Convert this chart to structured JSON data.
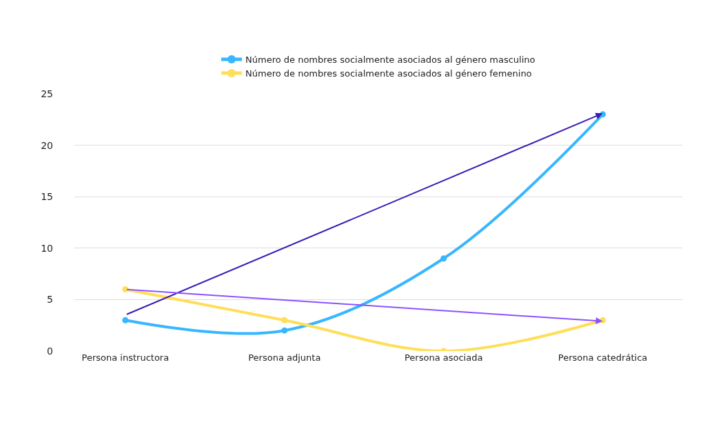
{
  "chart_data": {
    "type": "line",
    "categories": [
      "Persona instructora",
      "Persona adjunta",
      "Persona asociada",
      "Persona catedrática"
    ],
    "series": [
      {
        "name": "Número de nombres socialmente asociados al género masculino",
        "color": "#38b6ff",
        "values": [
          3,
          2,
          9,
          23
        ]
      },
      {
        "name": "Número de nombres socialmente asociados al género femenino",
        "color": "#ffde59",
        "values": [
          6,
          3,
          0,
          3
        ]
      }
    ],
    "ylim": [
      0,
      25
    ],
    "yticks": [
      0,
      5,
      10,
      15,
      20,
      25
    ],
    "grid": "y",
    "legend": "top",
    "marker": "circle",
    "line_style": "solid"
  }
}
